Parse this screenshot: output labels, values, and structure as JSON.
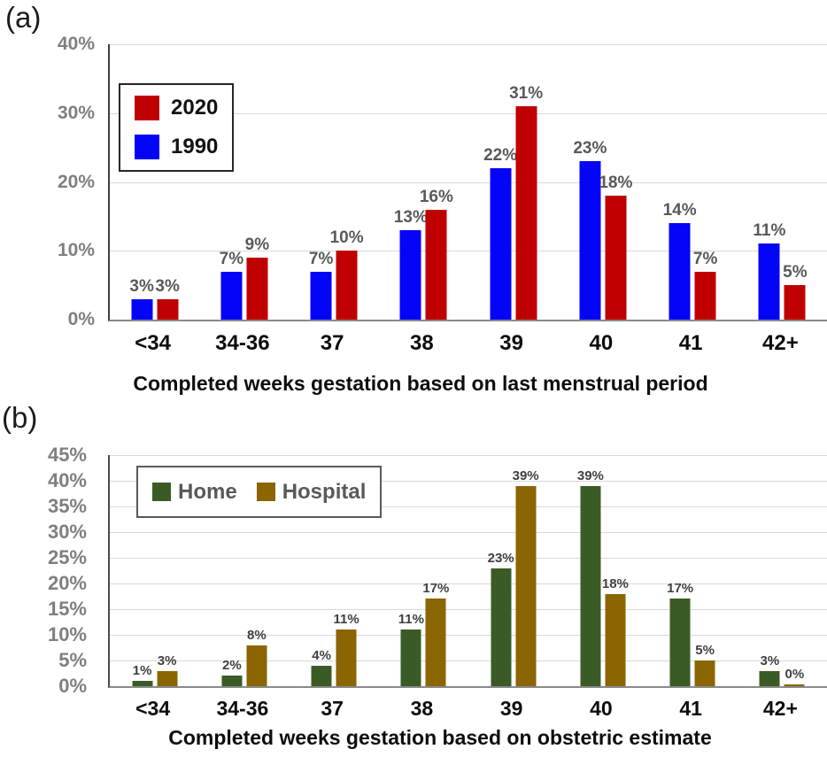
{
  "panels": [
    {
      "label": "(a)"
    },
    {
      "label": "(b)"
    }
  ],
  "chart_data": [
    {
      "type": "bar",
      "panel": "(a)",
      "categories": [
        "<34",
        "34-36",
        "37",
        "38",
        "39",
        "40",
        "41",
        "42+"
      ],
      "series": [
        {
          "name": "1990",
          "color": "#0404f8",
          "values": [
            3,
            7,
            7,
            13,
            22,
            23,
            14,
            11
          ]
        },
        {
          "name": "2020",
          "color": "#c00000",
          "values": [
            3,
            9,
            10,
            16,
            31,
            18,
            7,
            5
          ]
        }
      ],
      "data_labels": [
        "3%",
        "7%",
        "7%",
        "13%",
        "22%",
        "23%",
        "14%",
        "11%",
        "3%",
        "9%",
        "10%",
        "16%",
        "31%",
        "18%",
        "7%",
        "5%"
      ],
      "legend": {
        "order": [
          "2020",
          "1990"
        ],
        "position": "inside-top-left",
        "orientation": "vertical"
      },
      "xlabel": "Completed weeks gestation based on last menstrual period",
      "ylabel": "",
      "ylim": [
        0,
        40
      ],
      "ytick_step": 10,
      "yticks": [
        "0%",
        "10%",
        "20%",
        "30%",
        "40%"
      ],
      "grid": true
    },
    {
      "type": "bar",
      "panel": "(b)",
      "categories": [
        "<34",
        "34-36",
        "37",
        "38",
        "39",
        "40",
        "41",
        "42+"
      ],
      "series": [
        {
          "name": "Home",
          "color": "#3b5b26",
          "values": [
            1,
            2,
            4,
            11,
            23,
            39,
            17,
            3
          ]
        },
        {
          "name": "Hospital",
          "color": "#8a6500",
          "values": [
            3,
            8,
            11,
            17,
            39,
            18,
            5,
            0
          ]
        }
      ],
      "data_labels": [
        "1%",
        "2%",
        "4%",
        "11%",
        "23%",
        "39%",
        "17%",
        "3%",
        "3%",
        "8%",
        "11%",
        "17%",
        "39%",
        "18%",
        "5%",
        "0%"
      ],
      "legend": {
        "order": [
          "Home",
          "Hospital"
        ],
        "position": "inside-top-left",
        "orientation": "horizontal"
      },
      "xlabel": "Completed weeks gestation based on obstetric estimate",
      "ylabel": "",
      "ylim": [
        0,
        45
      ],
      "ytick_step": 5,
      "yticks": [
        "0%",
        "5%",
        "10%",
        "15%",
        "20%",
        "25%",
        "30%",
        "35%",
        "40%",
        "45%"
      ],
      "grid": true
    }
  ]
}
